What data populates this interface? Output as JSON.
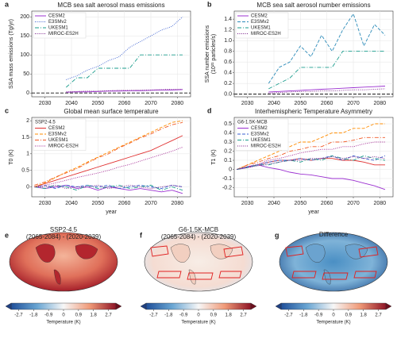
{
  "chart_data": [
    {
      "type": "line",
      "label": "a",
      "title": "MCB sea salt aerosol mass emissions",
      "ylabel": [
        "SSA mass emissions (Tg/yr)"
      ],
      "x": [
        2026,
        2030,
        2034,
        2038,
        2042,
        2046,
        2050,
        2054,
        2058,
        2062,
        2066,
        2070,
        2074,
        2078,
        2082
      ],
      "xlim": [
        2025,
        2085
      ],
      "xticks": [
        2030,
        2040,
        2050,
        2060,
        2070,
        2080
      ],
      "ylim": [
        -10,
        215
      ],
      "yticks": [
        0,
        50,
        100,
        150,
        200
      ],
      "grid": true,
      "hline": 0,
      "series": [
        {
          "name": "CESM2",
          "color": "#9b30d0",
          "dash": "solid",
          "values": [
            null,
            null,
            null,
            2,
            3,
            3,
            4,
            5,
            5,
            6,
            6,
            7,
            8,
            8,
            9
          ]
        },
        {
          "name": "E3SMv2",
          "color": "#3a5fd0",
          "dash": "dotted",
          "values": [
            null,
            null,
            null,
            35,
            45,
            60,
            70,
            85,
            95,
            120,
            135,
            150,
            165,
            175,
            200
          ]
        },
        {
          "name": "UKESM1",
          "color": "#1a9c8c",
          "dash": "dashdot",
          "values": [
            null,
            null,
            null,
            15,
            40,
            40,
            65,
            65,
            65,
            65,
            100,
            100,
            100,
            100,
            100
          ]
        },
        {
          "name": "MIROC-ES2H",
          "color": "#7a1f8a",
          "dash": "dotted",
          "values": [
            null,
            null,
            null,
            3,
            4,
            5,
            5,
            6,
            7,
            7,
            8,
            8,
            9,
            10,
            10
          ]
        }
      ]
    },
    {
      "type": "line",
      "label": "b",
      "title": "MCB sea salt aerosol number emissions",
      "ylabel": [
        "SSA number emissions",
        "(10²¹ particles/s)"
      ],
      "x": [
        2026,
        2030,
        2034,
        2038,
        2042,
        2046,
        2050,
        2054,
        2058,
        2062,
        2066,
        2070,
        2074,
        2078,
        2082
      ],
      "xlim": [
        2025,
        2085
      ],
      "xticks": [
        2030,
        2040,
        2050,
        2060,
        2070,
        2080
      ],
      "ylim": [
        -0.05,
        1.55
      ],
      "yticks": [
        {
          "value": 0,
          "label": "0.0"
        },
        0.2,
        0.4,
        0.6,
        0.8,
        {
          "value": 1,
          "label": "1.0"
        },
        1.2,
        1.4
      ],
      "grid": true,
      "hline": 0,
      "series": [
        {
          "name": "CESM2",
          "color": "#9b30d0",
          "dash": "solid",
          "values": [
            null,
            null,
            null,
            0.04,
            0.05,
            0.06,
            0.07,
            0.08,
            0.09,
            0.1,
            0.11,
            0.12,
            0.13,
            0.14,
            0.15
          ]
        },
        {
          "name": "E3SMv2",
          "color": "#2a8ab8",
          "dash": "dashed",
          "values": [
            null,
            null,
            null,
            0.2,
            0.5,
            0.6,
            0.9,
            0.7,
            1.1,
            0.8,
            1.2,
            1.5,
            0.9,
            1.3,
            1.1
          ]
        },
        {
          "name": "UKESM1",
          "color": "#1a9c8c",
          "dash": "dashdot",
          "values": [
            null,
            null,
            null,
            0.1,
            0.2,
            0.3,
            0.5,
            0.5,
            0.5,
            0.5,
            0.8,
            0.8,
            0.8,
            0.8,
            0.8
          ]
        },
        {
          "name": "MIROC-ES2H",
          "color": "#7a1f8a",
          "dash": "dotted",
          "values": [
            null,
            null,
            null,
            0.02,
            0.03,
            0.04,
            0.05,
            0.05,
            0.06,
            0.06,
            0.07,
            0.08,
            0.08,
            0.09,
            0.1
          ]
        }
      ]
    },
    {
      "type": "line",
      "label": "c",
      "title": "Global mean surface temperature",
      "ylabel": [
        "T0 (K)"
      ],
      "xlabel": "year",
      "legend_title": "SSP2-4.5",
      "x": [
        2026,
        2030,
        2034,
        2038,
        2042,
        2046,
        2050,
        2054,
        2058,
        2062,
        2066,
        2070,
        2074,
        2078,
        2082
      ],
      "xlim": [
        2025,
        2085
      ],
      "xticks": [
        2030,
        2040,
        2050,
        2060,
        2070,
        2080
      ],
      "ylim": [
        -0.3,
        2.1
      ],
      "yticks": [
        0,
        0.5,
        1,
        1.5,
        2
      ],
      "grid": true,
      "series": [
        {
          "name": "CESM2",
          "color": "#e03030",
          "dash": "solid",
          "values": [
            0,
            0.1,
            0.2,
            0.3,
            0.4,
            0.5,
            0.6,
            0.7,
            0.8,
            0.9,
            1.0,
            1.1,
            1.25,
            1.4,
            1.55
          ]
        },
        {
          "name": "E3SMv2",
          "color": "#ff8c00",
          "dash": "dashed",
          "values": [
            0,
            0.12,
            0.28,
            0.45,
            0.58,
            0.75,
            0.9,
            1.05,
            1.2,
            1.35,
            1.5,
            1.65,
            1.8,
            1.95,
            2.0
          ]
        },
        {
          "name": "UKESM1",
          "color": "#f05a28",
          "dash": "dashdot",
          "values": [
            0.05,
            0.15,
            0.3,
            0.42,
            0.55,
            0.72,
            0.88,
            1.0,
            1.18,
            1.32,
            1.48,
            1.6,
            1.75,
            1.88,
            1.95
          ]
        },
        {
          "name": "MIROC-ES2H",
          "color": "#a0208f",
          "dash": "dotted",
          "values": [
            0,
            0.05,
            0.12,
            0.2,
            0.28,
            0.35,
            0.42,
            0.5,
            0.6,
            0.68,
            0.78,
            0.88,
            0.98,
            1.08,
            1.2
          ]
        }
      ],
      "other_series": [
        {
          "color": "#9b30d0",
          "dash": "solid",
          "values": [
            0,
            -0.05,
            0,
            0.05,
            -0.05,
            0,
            -0.1,
            0,
            -0.05,
            -0.1,
            -0.05,
            -0.1,
            -0.15,
            -0.1,
            -0.2
          ]
        },
        {
          "color": "#3a5fd0",
          "dash": "dashed",
          "values": [
            0,
            0.05,
            -0.05,
            0.05,
            0,
            0.05,
            0,
            0.05,
            -0.05,
            0,
            0.05,
            0,
            -0.05,
            0.05,
            0
          ]
        },
        {
          "color": "#1a9c8c",
          "dash": "dashdot",
          "values": [
            0,
            -0.05,
            0.05,
            0,
            -0.1,
            0.05,
            -0.05,
            0,
            0.05,
            -0.05,
            0,
            0.05,
            -0.1,
            0,
            -0.1
          ]
        },
        {
          "color": "#7a1f8a",
          "dash": "dotted",
          "values": [
            0,
            0,
            0.05,
            -0.05,
            0,
            0,
            0.05,
            -0.05,
            0,
            0.05,
            0,
            -0.05,
            0,
            0.05,
            0
          ]
        }
      ]
    },
    {
      "type": "line",
      "label": "d",
      "title": "Interhemispheric Temperature Asymmetry",
      "ylabel": [
        "T1 (K)"
      ],
      "xlabel": "year",
      "legend_title": "G6-1.5K-MCB",
      "x": [
        2026,
        2030,
        2034,
        2038,
        2042,
        2046,
        2050,
        2054,
        2058,
        2062,
        2066,
        2070,
        2074,
        2078,
        2082
      ],
      "xlim": [
        2025,
        2085
      ],
      "xticks": [
        2030,
        2040,
        2050,
        2060,
        2070,
        2080
      ],
      "ylim": [
        -0.3,
        0.57
      ],
      "yticks": [
        -0.2,
        -0.1,
        0,
        0.1,
        0.2,
        0.3,
        0.4,
        0.5
      ],
      "grid": true,
      "series": [
        {
          "name": "CESM2",
          "color": "#9b30d0",
          "dash": "solid",
          "values": [
            0,
            0.02,
            0.05,
            0.02,
            0,
            -0.03,
            -0.05,
            -0.06,
            -0.08,
            -0.1,
            -0.1,
            -0.12,
            -0.15,
            -0.18,
            -0.22
          ]
        },
        {
          "name": "E3SMv2",
          "color": "#3a5fd0",
          "dash": "dashed",
          "values": [
            0,
            0.03,
            0.05,
            0.08,
            0.1,
            0.1,
            0.12,
            0.1,
            0.12,
            0.15,
            0.1,
            0.15,
            0.12,
            0.1,
            0.15
          ]
        },
        {
          "name": "UKESM1",
          "color": "#1a9c8c",
          "dash": "dashdot",
          "values": [
            0,
            0.02,
            0.05,
            0.05,
            0.08,
            0.1,
            0.08,
            0.12,
            0.1,
            0.15,
            0.12,
            0.1,
            0.15,
            0.12,
            0.1
          ]
        },
        {
          "name": "MIROC-ES2H",
          "color": "#7a1f8a",
          "dash": "dotted",
          "values": [
            0,
            0.02,
            0.04,
            0.06,
            0.08,
            0.1,
            0.1,
            0.12,
            0.12,
            0.14,
            0.12,
            0.14,
            0.12,
            0.14,
            0.12
          ]
        }
      ],
      "other_series": [
        {
          "color": "#e03030",
          "dash": "solid",
          "values": [
            0,
            0.03,
            0.05,
            0.08,
            0.1,
            0.1,
            0.12,
            0.1,
            0.12,
            0.12,
            0.1,
            0.1,
            0.08,
            0.05,
            0.05
          ]
        },
        {
          "color": "#ff8c00",
          "dash": "dashed",
          "values": [
            0,
            0.05,
            0.1,
            0.15,
            0.2,
            0.25,
            0.3,
            0.3,
            0.35,
            0.4,
            0.4,
            0.45,
            0.45,
            0.5,
            0.5
          ]
        },
        {
          "color": "#f05a28",
          "dash": "dashdot",
          "values": [
            0,
            0.05,
            0.08,
            0.12,
            0.15,
            0.2,
            0.22,
            0.25,
            0.25,
            0.3,
            0.3,
            0.32,
            0.35,
            0.35,
            0.35
          ]
        },
        {
          "color": "#a0208f",
          "dash": "dotted",
          "values": [
            0,
            0.03,
            0.06,
            0.1,
            0.12,
            0.15,
            0.18,
            0.2,
            0.22,
            0.22,
            0.25,
            0.25,
            0.28,
            0.3,
            0.3
          ]
        }
      ]
    }
  ],
  "maps": [
    {
      "label": "e",
      "title": [
        "SSP2-4.5",
        "(2065-2084) - (2020-2039)"
      ]
    },
    {
      "label": "f",
      "title": [
        "G6-1.5K-MCB",
        "(2065-2084) - (2020-2039)"
      ]
    },
    {
      "label": "g",
      "title": [
        "Difference"
      ]
    }
  ],
  "colorbar": {
    "lim": [
      -3.15,
      3.15
    ],
    "ticks": [
      -2.7,
      -1.8,
      -0.9,
      0,
      0.9,
      1.8,
      2.7
    ],
    "label": "Temperature (K)"
  }
}
